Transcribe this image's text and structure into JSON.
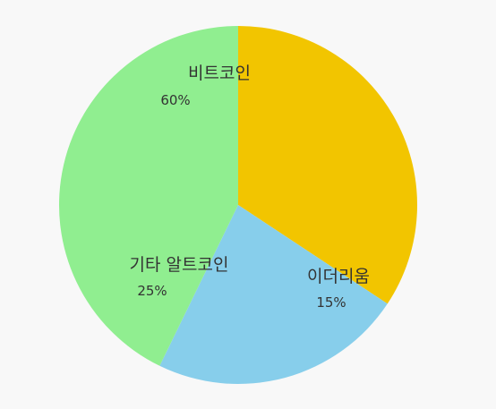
{
  "chart_data": {
    "type": "pie",
    "title": "",
    "slices": [
      {
        "label": "비트코인",
        "value": 60,
        "value_label": "60%",
        "color": "#f2c500"
      },
      {
        "label": "이더리움",
        "value": 15,
        "value_label": "15%",
        "color": "#87ceeb"
      },
      {
        "label": "기타 알트코인",
        "value": 25,
        "value_label": "25%",
        "color": "#90ee90"
      }
    ],
    "legend": "none"
  }
}
